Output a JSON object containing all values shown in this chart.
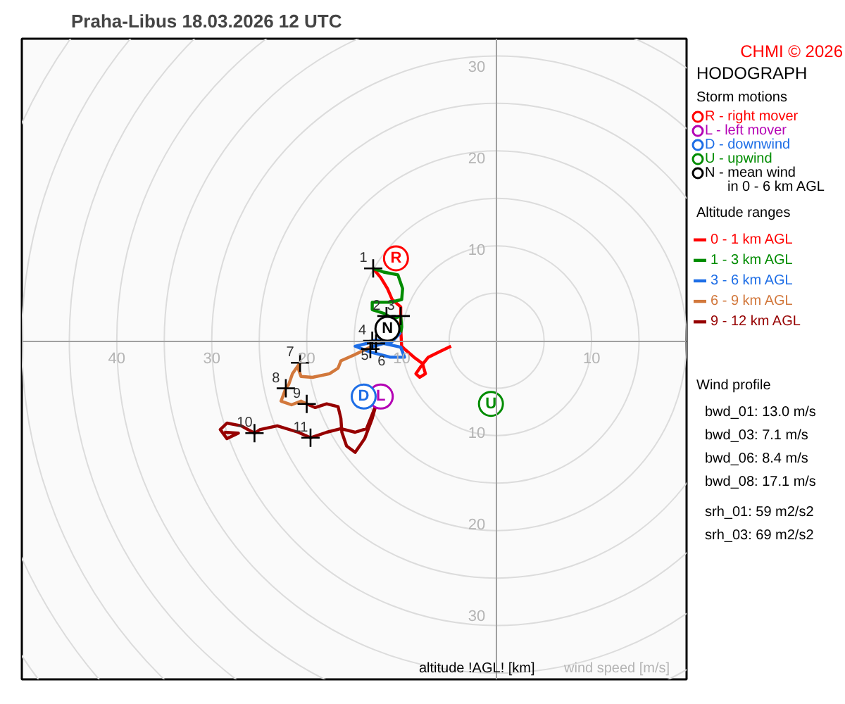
{
  "chart_data": {
    "type": "line",
    "title": "Praha-Libus    18.03.2026 12 UTC",
    "xlabel": "wind speed [m/s]",
    "legend_title": "Altitude ranges",
    "legend": "right",
    "line_style": "solid",
    "xlim": [
      -50,
      20
    ],
    "ylim": [
      -37,
      33
    ],
    "xticks": [
      {
        "value": -40,
        "label": "40"
      },
      {
        "value": -30,
        "label": "30"
      },
      {
        "value": -20,
        "label": "20"
      },
      {
        "value": -10,
        "label": "10"
      },
      {
        "value": 10,
        "label": "10"
      }
    ],
    "yticks": [
      {
        "value": -30,
        "label": "30"
      },
      {
        "value": -20,
        "label": "20"
      },
      {
        "value": -10,
        "label": "10"
      },
      {
        "value": 10,
        "label": "10"
      },
      {
        "value": 20,
        "label": "20"
      },
      {
        "value": 30,
        "label": "30"
      }
    ],
    "annotations": [
      "HODOGRAPH",
      "Storm motions",
      "Wind profile",
      "bwd_01: 13.0 m/s",
      "bwd_03: 7.1 m/s",
      "bwd_06: 8.4 m/s",
      "bwd_08: 17.1 m/s",
      "srh_01: 59 m2/s2",
      "srh_03: 69 m2/s2",
      "altitude !AGL! [km]",
      "CHMI © 2026",
      {
        "text": "1",
        "x": -13.0,
        "y": 7.9
      },
      {
        "text": "2",
        "x": -11.6,
        "y": 2.7
      },
      {
        "text": "3",
        "x": -10.1,
        "y": 2.7
      },
      {
        "text": "4",
        "x": -13.1,
        "y": 0.0
      },
      {
        "text": "5",
        "x": -12.7,
        "y": -0.3
      },
      {
        "text": "6",
        "x": -13.3,
        "y": -0.9
      },
      {
        "text": "7",
        "x": -20.7,
        "y": -2.4
      },
      {
        "text": "8",
        "x": -22.2,
        "y": -5.2
      },
      {
        "text": "9",
        "x": -20.0,
        "y": -6.9
      },
      {
        "text": "10",
        "x": -25.5,
        "y": -10.1
      },
      {
        "text": "11",
        "x": -19.6,
        "y": -10.6
      },
      {
        "text": "R",
        "x": -10.6,
        "y": 9.0
      },
      {
        "text": "L",
        "x": -12.2,
        "y": -6.1
      },
      {
        "text": "D",
        "x": -14.0,
        "y": -6.1
      },
      {
        "text": "U",
        "x": -0.6,
        "y": -6.9
      },
      {
        "text": "N",
        "x": -11.5,
        "y": 1.3
      }
    ],
    "series": [
      {
        "name": "0 - 1 km AGL",
        "color": "#ff0000",
        "x": [
          -4.8,
          -6.0,
          -7.2,
          -7.9,
          -8.5,
          -8.1,
          -7.5,
          -7.8,
          -8.7,
          -9.6,
          -10.0,
          -10.1,
          -10.1,
          -11.0,
          -11.5,
          -12.2,
          -13.0
        ],
        "values": [
          -0.6,
          -1.2,
          -1.8,
          -2.7,
          -3.6,
          -4.0,
          -3.6,
          -2.5,
          -1.8,
          -1.0,
          -0.6,
          1.2,
          3.7,
          4.5,
          5.7,
          6.9,
          7.9
        ]
      },
      {
        "name": "1 - 3 km AGL",
        "color": "#008c00",
        "x": [
          -13.0,
          -11.9,
          -10.4,
          -9.9,
          -10.0,
          -11.2,
          -13.1,
          -13.1,
          -11.9,
          -10.9,
          -10.1,
          -10.0,
          -10.1
        ],
        "values": [
          7.9,
          7.5,
          7.2,
          5.7,
          4.5,
          4.2,
          4.2,
          3.4,
          3.0,
          2.4,
          2.7,
          1.5,
          0.9
        ]
      },
      {
        "name": "3 - 6 km AGL",
        "color": "#1e6ee6",
        "x": [
          -10.1,
          -11.2,
          -12.7,
          -13.7,
          -14.9,
          -13.4,
          -11.2,
          -9.7,
          -10.1,
          -11.9,
          -13.3
        ],
        "values": [
          0.9,
          -0.3,
          0.1,
          -0.3,
          -0.6,
          -1.2,
          -1.8,
          -1.8,
          -0.7,
          -0.3,
          -0.7
        ]
      },
      {
        "name": "6 - 9 km AGL",
        "color": "#d2783c",
        "x": [
          -13.3,
          -14.9,
          -16.4,
          -16.7,
          -17.6,
          -19.4,
          -20.6,
          -20.9,
          -20.7,
          -21.5,
          -21.9,
          -22.2,
          -22.7,
          -21.6,
          -20.6,
          -20.0
        ],
        "values": [
          -0.7,
          -1.5,
          -2.2,
          -3.0,
          -3.6,
          -4.0,
          -3.9,
          -3.0,
          -2.4,
          -3.6,
          -4.8,
          -5.2,
          -6.6,
          -7.0,
          -6.6,
          -6.9
        ]
      },
      {
        "name": "9 - 12 km AGL",
        "color": "#960000",
        "x": [
          -20.0,
          -19.1,
          -17.9,
          -16.7,
          -16.4,
          -16.3,
          -15.8,
          -14.9,
          -13.9,
          -13.1,
          -12.7,
          -13.7,
          -14.9,
          -16.4,
          -17.9,
          -19.6,
          -20.9,
          -23.1,
          -24.9,
          -25.5,
          -26.9,
          -28.4,
          -29.1,
          -28.4,
          -27.2,
          -28.7
        ],
        "values": [
          -6.9,
          -7.3,
          -6.9,
          -7.2,
          -8.5,
          -10.0,
          -11.5,
          -12.2,
          -10.7,
          -8.5,
          -7.0,
          -9.6,
          -10.0,
          -9.6,
          -10.0,
          -10.6,
          -10.0,
          -9.3,
          -9.7,
          -10.1,
          -9.3,
          -9.0,
          -9.7,
          -10.7,
          -10.1,
          -10.0
        ]
      },
      {
        "type": "scatter",
        "marker": "cross",
        "color": "#000000",
        "x": [
          -13.0,
          -11.6,
          -10.1,
          -13.1,
          -12.7,
          -13.3,
          -20.7,
          -22.2,
          -20.0,
          -25.5,
          -19.6
        ],
        "values": [
          7.9,
          2.7,
          2.7,
          0.0,
          -0.3,
          -0.9,
          -2.4,
          -5.2,
          -6.9,
          -10.1,
          -10.6
        ]
      },
      {
        "type": "scatter",
        "marker": "circle",
        "name": "R - right mover",
        "color": "#ff0000",
        "x": [
          -10.6
        ],
        "values": [
          9.0
        ]
      },
      {
        "type": "scatter",
        "marker": "circle",
        "name": "L - left mover",
        "color": "#b400b4",
        "x": [
          -12.2
        ],
        "values": [
          -6.1
        ]
      },
      {
        "type": "scatter",
        "marker": "circle",
        "name": "D - downwind",
        "color": "#1e6ee6",
        "x": [
          -14.0
        ],
        "values": [
          -6.1
        ]
      },
      {
        "type": "scatter",
        "marker": "circle",
        "name": "U - upwind",
        "color": "#008c00",
        "x": [
          -0.6
        ],
        "values": [
          -6.9
        ]
      },
      {
        "type": "scatter",
        "marker": "circle",
        "name": "N - mean wind\nin 0 - 6 km AGL",
        "color": "#000000",
        "x": [
          -11.5
        ],
        "values": [
          1.3
        ]
      }
    ]
  }
}
